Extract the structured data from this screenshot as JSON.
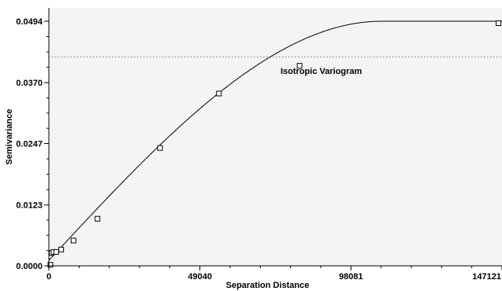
{
  "chart_data": {
    "type": "scatter",
    "title": "",
    "xlabel": "Separation Distance",
    "ylabel": "Semivariance",
    "xlim": [
      0,
      147121
    ],
    "ylim": [
      0,
      0.0494
    ],
    "x_ticks": [
      {
        "value": 0,
        "label": "0"
      },
      {
        "value": 49040,
        "label": "49040"
      },
      {
        "value": 98081,
        "label": "98081"
      },
      {
        "value": 147121,
        "label": "147121"
      }
    ],
    "y_ticks": [
      {
        "value": 0,
        "label": "0.0000"
      },
      {
        "value": 0.0123,
        "label": "0.0123"
      },
      {
        "value": 0.0247,
        "label": "0.0247"
      },
      {
        "value": 0.037,
        "label": "0.0370"
      },
      {
        "value": 0.0494,
        "label": "0.0494"
      }
    ],
    "points": [
      {
        "x": 500,
        "y": 0.0002
      },
      {
        "x": 900,
        "y": 0.0026
      },
      {
        "x": 1500,
        "y": 0.0028
      },
      {
        "x": 2400,
        "y": 0.0028
      },
      {
        "x": 4000,
        "y": 0.0033
      },
      {
        "x": 8000,
        "y": 0.0051
      },
      {
        "x": 15800,
        "y": 0.0095
      },
      {
        "x": 36100,
        "y": 0.0238
      },
      {
        "x": 55200,
        "y": 0.0348
      },
      {
        "x": 81400,
        "y": 0.0404
      },
      {
        "x": 146000,
        "y": 0.049
      }
    ],
    "model": {
      "type": "spherical",
      "nugget": 0.0011,
      "sill": 0.0494,
      "range": 108000
    },
    "reference_line": {
      "y": 0.0422,
      "style": "dotted"
    },
    "annotation": "Isotropic Variogram",
    "grid": false,
    "colors": {
      "plot_background": "#f4f4f4",
      "axis": "#000000",
      "curve": "#000000",
      "marker": "#000000",
      "reference_line": "#777777"
    }
  }
}
